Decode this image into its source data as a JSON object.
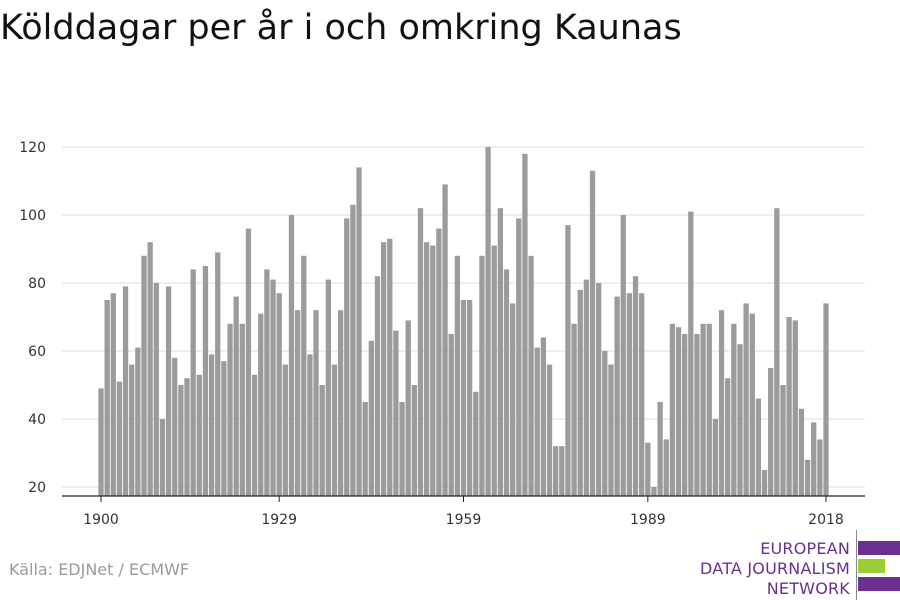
{
  "chart_data": {
    "type": "bar",
    "title": "Kölddagar per år i och omkring Kaunas",
    "x": [
      1900,
      1901,
      1902,
      1903,
      1904,
      1905,
      1906,
      1907,
      1908,
      1909,
      1910,
      1911,
      1912,
      1913,
      1914,
      1915,
      1916,
      1917,
      1918,
      1919,
      1920,
      1921,
      1922,
      1923,
      1924,
      1925,
      1926,
      1927,
      1928,
      1929,
      1930,
      1931,
      1932,
      1933,
      1934,
      1935,
      1936,
      1937,
      1938,
      1939,
      1940,
      1941,
      1942,
      1943,
      1944,
      1945,
      1946,
      1947,
      1948,
      1949,
      1950,
      1951,
      1952,
      1953,
      1954,
      1955,
      1956,
      1957,
      1958,
      1959,
      1960,
      1961,
      1962,
      1963,
      1964,
      1965,
      1966,
      1967,
      1968,
      1969,
      1970,
      1971,
      1972,
      1973,
      1974,
      1975,
      1976,
      1977,
      1978,
      1979,
      1980,
      1981,
      1982,
      1983,
      1984,
      1985,
      1986,
      1987,
      1988,
      1989,
      1990,
      1991,
      1992,
      1993,
      1994,
      1995,
      1996,
      1997,
      1998,
      1999,
      2000,
      2001,
      2002,
      2003,
      2004,
      2005,
      2006,
      2007,
      2008,
      2009,
      2010,
      2011,
      2012,
      2013,
      2014,
      2015,
      2016,
      2017,
      2018
    ],
    "values": [
      49,
      75,
      77,
      51,
      79,
      56,
      61,
      88,
      92,
      80,
      40,
      79,
      58,
      50,
      52,
      84,
      53,
      85,
      59,
      89,
      57,
      68,
      76,
      68,
      96,
      53,
      71,
      84,
      81,
      77,
      56,
      100,
      72,
      88,
      59,
      72,
      50,
      81,
      56,
      72,
      99,
      103,
      114,
      45,
      63,
      82,
      92,
      93,
      66,
      45,
      69,
      50,
      102,
      92,
      91,
      96,
      109,
      65,
      88,
      75,
      75,
      48,
      88,
      120,
      91,
      102,
      84,
      74,
      99,
      118,
      88,
      61,
      64,
      56,
      32,
      32,
      97,
      68,
      78,
      81,
      113,
      80,
      60,
      56,
      76,
      100,
      77,
      82,
      77,
      33,
      20,
      45,
      34,
      68,
      67,
      65,
      101,
      65,
      68,
      68,
      40,
      72,
      52,
      68,
      62,
      74,
      71,
      46,
      25,
      55,
      102,
      50,
      70,
      69,
      43,
      28,
      39,
      34,
      74
    ],
    "xticks": [
      "1900",
      "1929",
      "1959",
      "1989",
      "2018"
    ],
    "yticks": [
      "20",
      "40",
      "60",
      "80",
      "100",
      "120"
    ],
    "ylim": [
      18,
      122
    ],
    "bar_color": "#9b9b9b",
    "grid": true
  },
  "source": "Källa: EDJNet / ECMWF",
  "logo": {
    "lines": [
      "EUROPEAN",
      "DATA JOURNALISM",
      "NETWORK"
    ],
    "colors": {
      "text": "#6b2f8f",
      "purple": "#6b2f8f",
      "green": "#9bcc33"
    }
  }
}
